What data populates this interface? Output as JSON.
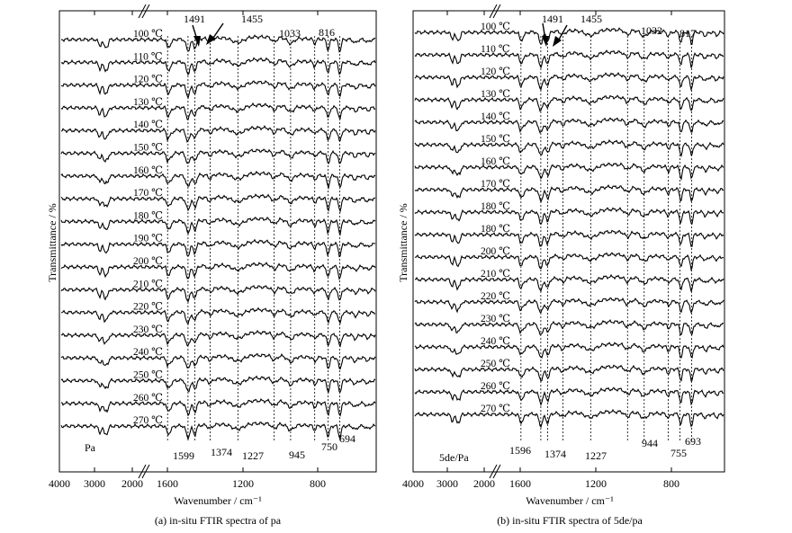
{
  "chart_data": [
    {
      "type": "line",
      "caption": "(a) in-situ FTIR spectra of pa",
      "xlabel": "Wavenumber / cm⁻¹",
      "ylabel": "Transmittance / %",
      "sample_label": "Pa",
      "x_ticks": [
        "4000",
        "3000",
        "2000",
        "1600",
        "1200",
        "800"
      ],
      "x_axis_break": true,
      "series_labels": [
        "100 ℃",
        "110 ℃",
        "120 ℃",
        "130 ℃",
        "140 ℃",
        "150 ℃",
        "160 ℃",
        "170 ℃",
        "180 ℃",
        "190 ℃",
        "200 ℃",
        "210 ℃",
        "220 ℃",
        "230 ℃",
        "240 ℃",
        "250 ℃",
        "260 ℃",
        "270 ℃"
      ],
      "top_peak_labels": [
        "1491",
        "1455",
        "1033",
        "816"
      ],
      "bottom_peak_labels": [
        "1599",
        "1374",
        "1227",
        "945",
        "750",
        "694"
      ],
      "marker_wavenumbers": [
        1599,
        1491,
        1455,
        1374,
        1227,
        1033,
        945,
        816,
        750,
        694
      ]
    },
    {
      "type": "line",
      "caption": "(b) in-situ FTIR spectra of 5de/pa",
      "xlabel": "Wavenumber / cm⁻¹",
      "ylabel": "Transmittance / %",
      "sample_label": "5de/Pa",
      "x_ticks": [
        "4000",
        "3000",
        "2000",
        "1600",
        "1200",
        "800"
      ],
      "x_axis_break": true,
      "series_labels": [
        "100 ℃",
        "110 ℃",
        "120 ℃",
        "130 ℃",
        "140 ℃",
        "150 ℃",
        "160 ℃",
        "170 ℃",
        "180 ℃",
        "180 ℃",
        "200 ℃",
        "210 ℃",
        "220 ℃",
        "230 ℃",
        "240 ℃",
        "250 ℃",
        "260 ℃",
        "270 ℃"
      ],
      "top_peak_labels": [
        "1491",
        "1455",
        "1032",
        "817"
      ],
      "bottom_peak_labels": [
        "1596",
        "1374",
        "1227",
        "944",
        "755",
        "693"
      ],
      "marker_wavenumbers": [
        1596,
        1491,
        1455,
        1374,
        1227,
        1032,
        944,
        817,
        755,
        693
      ]
    }
  ]
}
